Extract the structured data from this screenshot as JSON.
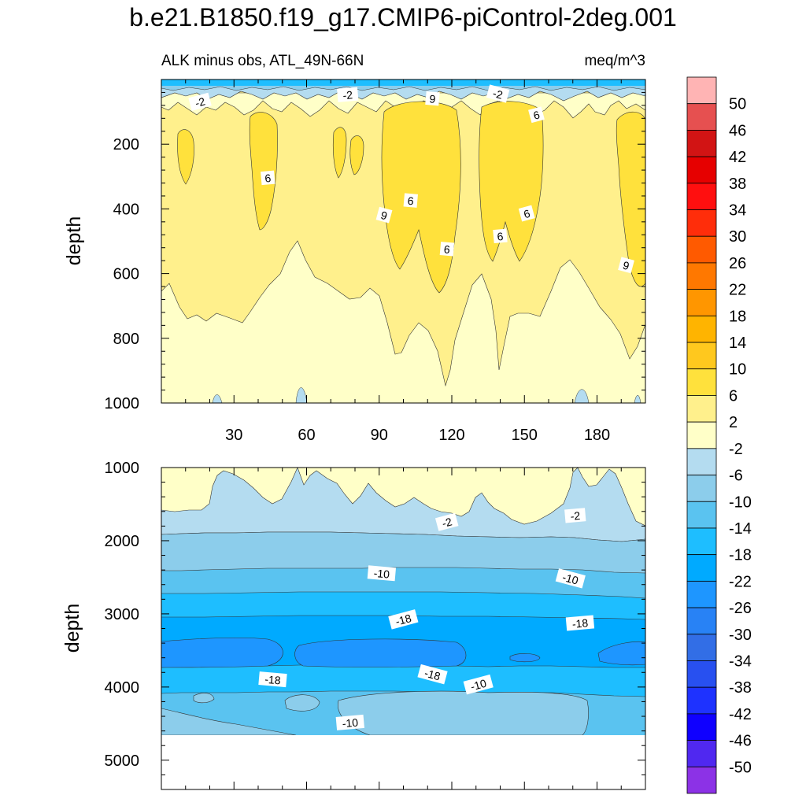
{
  "title": "b.e21.B1850.f19_g17.CMIP6-piControl-2deg.001",
  "chart_data": [
    {
      "type": "contour",
      "panel": "upper",
      "left_label": "ALK minus obs, ATL_49N-66N",
      "right_label": "meq/m^3",
      "ylabel": "depth",
      "xlim": [
        0,
        200
      ],
      "ylim": [
        0,
        1000
      ],
      "y_inverted": true,
      "xticks": [
        30,
        60,
        90,
        120,
        150,
        180
      ],
      "yticks": [
        200,
        400,
        600,
        800,
        1000
      ],
      "contour_labels": [
        {
          "text": "-2",
          "x": 16,
          "y": 70
        },
        {
          "text": "-2",
          "x": 77,
          "y": 48
        },
        {
          "text": "9",
          "x": 112,
          "y": 60
        },
        {
          "text": "-2",
          "x": 139,
          "y": 45
        },
        {
          "text": "6",
          "x": 155,
          "y": 110
        },
        {
          "text": "6",
          "x": 44,
          "y": 305
        },
        {
          "text": "6",
          "x": 103,
          "y": 375
        },
        {
          "text": "9",
          "x": 92,
          "y": 420
        },
        {
          "text": "6",
          "x": 151,
          "y": 415
        },
        {
          "text": "6",
          "x": 140,
          "y": 485
        },
        {
          "text": "6",
          "x": 118,
          "y": 525
        },
        {
          "text": "9",
          "x": 192,
          "y": 575
        }
      ]
    },
    {
      "type": "contour",
      "panel": "lower",
      "ylabel": "depth",
      "xlim": [
        0,
        200
      ],
      "ylim": [
        1000,
        5400
      ],
      "y_inverted": true,
      "yticks": [
        1000,
        2000,
        3000,
        4000,
        5000
      ],
      "data_bottom_depth": 4630,
      "contour_labels": [
        {
          "text": "-2",
          "x": 118,
          "y": 1750
        },
        {
          "text": "-2",
          "x": 171,
          "y": 1660
        },
        {
          "text": "-10",
          "x": 91,
          "y": 2450
        },
        {
          "text": "-10",
          "x": 169,
          "y": 2520
        },
        {
          "text": "-18",
          "x": 100,
          "y": 3080
        },
        {
          "text": "-18",
          "x": 173,
          "y": 3130
        },
        {
          "text": "-18",
          "x": 46,
          "y": 3900
        },
        {
          "text": "-18",
          "x": 112,
          "y": 3830
        },
        {
          "text": "-10",
          "x": 131,
          "y": 3970
        },
        {
          "text": "-10",
          "x": 78,
          "y": 4490
        }
      ]
    }
  ],
  "colorbar": {
    "labels": [
      "50",
      "46",
      "42",
      "38",
      "34",
      "30",
      "26",
      "22",
      "18",
      "14",
      "10",
      "6",
      "2",
      "-2",
      "-6",
      "-10",
      "-14",
      "-18",
      "-22",
      "-26",
      "-30",
      "-34",
      "-38",
      "-42",
      "-46",
      "-50"
    ],
    "colors": [
      "#ffb4b4",
      "#e65050",
      "#d21414",
      "#e60000",
      "#ff0f0f",
      "#ff2d0a",
      "#ff5a00",
      "#ff7800",
      "#ff9600",
      "#ffb400",
      "#ffc81e",
      "#ffe13c",
      "#fff08c",
      "#ffffc8",
      "#b4dcf0",
      "#8ccdeb",
      "#5ac3f0",
      "#1ebeff",
      "#00aaff",
      "#1e96ff",
      "#2882f5",
      "#326ee6",
      "#2850f0",
      "#1e32ff",
      "#0f00ff",
      "#5028f0",
      "#8c32e6"
    ]
  }
}
